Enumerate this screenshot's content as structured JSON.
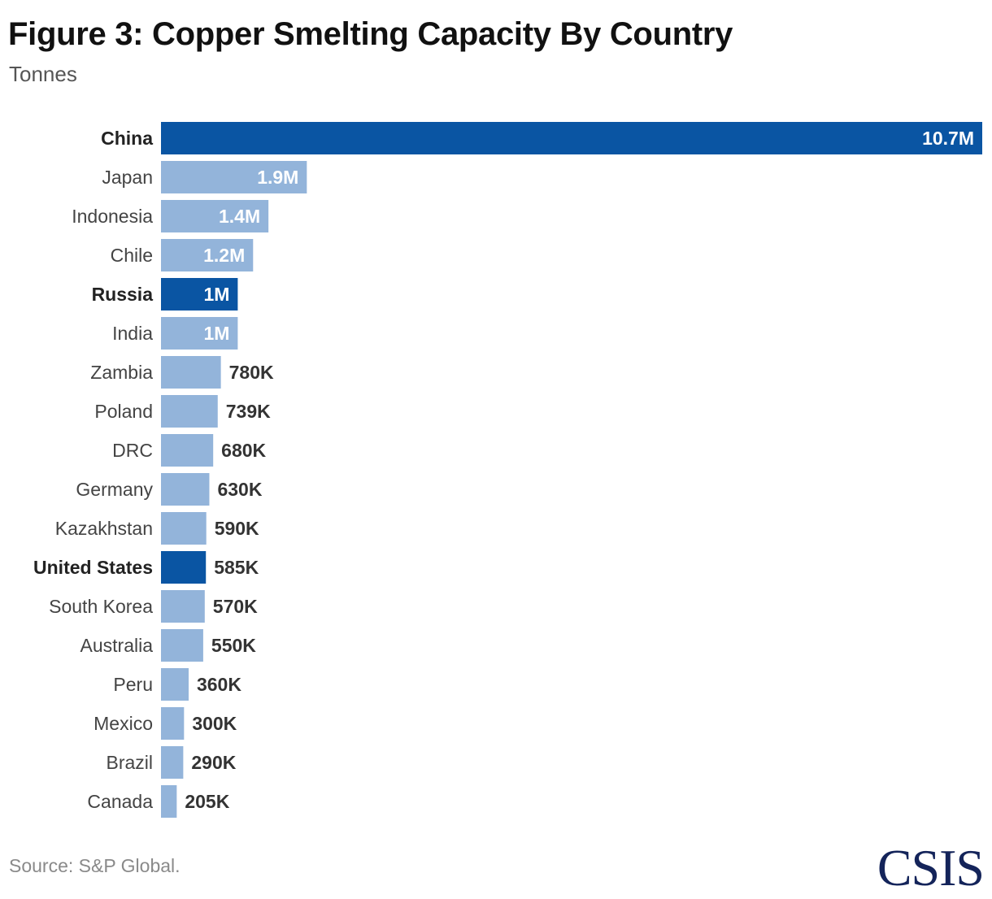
{
  "header": {
    "title": "Figure 3: Copper Smelting Capacity By Country",
    "subtitle": "Tonnes"
  },
  "footer": {
    "source": "Source: S&P Global.",
    "logo": "CSIS"
  },
  "colors": {
    "highlight": "#0a55a3",
    "default": "#93b4da",
    "label_inside": "#ffffff",
    "label_outside": "#333333"
  },
  "chart_data": {
    "type": "bar",
    "orientation": "horizontal",
    "title": "Figure 3: Copper Smelting Capacity By Country",
    "subtitle": "Tonnes",
    "unit": "Tonnes",
    "categories": [
      "China",
      "Japan",
      "Indonesia",
      "Chile",
      "Russia",
      "India",
      "Zambia",
      "Poland",
      "DRC",
      "Germany",
      "Kazakhstan",
      "United States",
      "South Korea",
      "Australia",
      "Peru",
      "Mexico",
      "Brazil",
      "Canada"
    ],
    "values": [
      10700000,
      1900000,
      1400000,
      1200000,
      1000000,
      1000000,
      780000,
      739000,
      680000,
      630000,
      590000,
      585000,
      570000,
      550000,
      360000,
      300000,
      290000,
      205000
    ],
    "data_labels": [
      "10.7M",
      "1.9M",
      "1.4M",
      "1.2M",
      "1M",
      "1M",
      "780K",
      "739K",
      "680K",
      "630K",
      "590K",
      "585K",
      "570K",
      "550K",
      "360K",
      "300K",
      "290K",
      "205K"
    ],
    "highlighted": [
      "China",
      "Russia",
      "United States"
    ],
    "xlim": [
      0,
      10700000
    ],
    "grid": false,
    "legend": "none"
  }
}
